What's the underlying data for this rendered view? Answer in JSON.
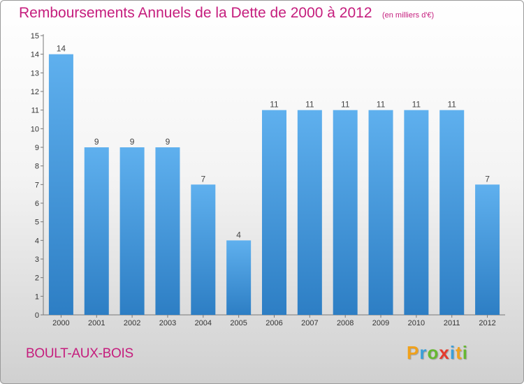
{
  "title": "Remboursements Annuels de la Dette de 2000 à 2012",
  "subtitle": "(en milliers d'€)",
  "commune": "BOULT-AUX-BOIS",
  "logo": {
    "letters": [
      "P",
      "r",
      "o",
      "x",
      "i",
      "t",
      "i"
    ],
    "colors": [
      "#f0a11b",
      "#3a9fd8",
      "#66b832",
      "#e53a2c",
      "#3a9fd8",
      "#f0a11b",
      "#66b832"
    ]
  },
  "colors": {
    "title": "#c51d7d",
    "bar_top": "#5fb0ee",
    "bar_bottom": "#2d7ec4"
  },
  "chart_data": {
    "type": "bar",
    "categories": [
      "2000",
      "2001",
      "2002",
      "2003",
      "2004",
      "2005",
      "2006",
      "2007",
      "2008",
      "2009",
      "2010",
      "2011",
      "2012"
    ],
    "values": [
      14,
      9,
      9,
      9,
      7,
      4,
      11,
      11,
      11,
      11,
      11,
      11,
      7
    ],
    "ylim": [
      0,
      15
    ],
    "yticks": [
      "0",
      "1",
      "2",
      "3",
      "4",
      "5",
      "6",
      "7",
      "8",
      "9",
      "10",
      "11",
      "12",
      "13",
      "14",
      "15"
    ],
    "grid": false,
    "data_labels": [
      "14",
      "9",
      "9",
      "9",
      "7",
      "4",
      "11",
      "11",
      "11",
      "11",
      "11",
      "11",
      "7"
    ]
  }
}
